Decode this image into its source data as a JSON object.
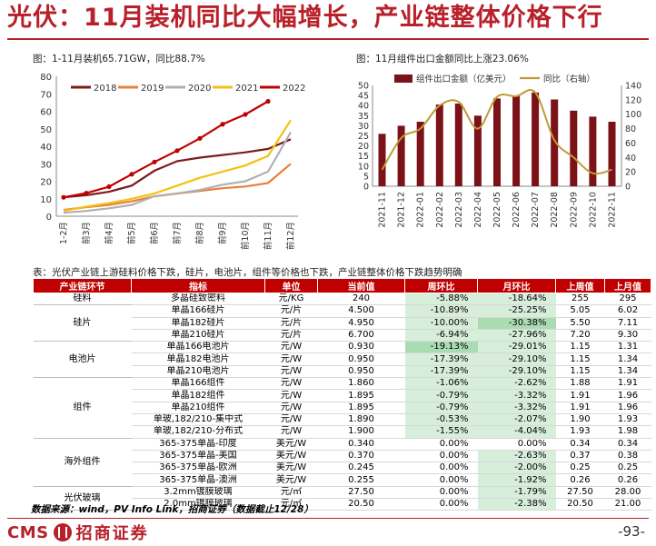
{
  "title": "光伏：11月装机同比大幅增长，产业链整体价格下行",
  "figure1": {
    "caption": "图：1-11月装机65.71GW，同比88.7%"
  },
  "figure2": {
    "caption": "图：11月组件出口金额同比上涨23.06%"
  },
  "table": {
    "caption": "表：光伏产业链上游硅料价格下跌，硅片，电池片，组件等价格也下跌，产业链整体价格下跌趋势明确",
    "headers": [
      "产业链环节",
      "指标",
      "单位",
      "当前值",
      "周环比",
      "月环比",
      "上周值",
      "上月值"
    ],
    "groups": [
      {
        "name": "硅料",
        "rows": [
          {
            "indicator": "多晶硅致密料",
            "unit": "元/KG",
            "current": "240",
            "wow": "-5.88%",
            "mom": "-18.64%",
            "last_week": "255",
            "last_month": "295",
            "wow_hl": 1,
            "mom_hl": 1
          }
        ]
      },
      {
        "name": "硅片",
        "rows": [
          {
            "indicator": "单晶166硅片",
            "unit": "元/片",
            "current": "4.500",
            "wow": "-10.89%",
            "mom": "-25.25%",
            "last_week": "5.05",
            "last_month": "6.02",
            "wow_hl": 1,
            "mom_hl": 1
          },
          {
            "indicator": "单晶182硅片",
            "unit": "元/片",
            "current": "4.950",
            "wow": "-10.00%",
            "mom": "-30.38%",
            "last_week": "5.50",
            "last_month": "7.11",
            "wow_hl": 1,
            "mom_hl": 2
          },
          {
            "indicator": "单晶210硅片",
            "unit": "元/片",
            "current": "6.700",
            "wow": "-6.94%",
            "mom": "-27.96%",
            "last_week": "7.20",
            "last_month": "9.30",
            "wow_hl": 1,
            "mom_hl": 1
          }
        ]
      },
      {
        "name": "电池片",
        "rows": [
          {
            "indicator": "单晶166电池片",
            "unit": "元/W",
            "current": "0.930",
            "wow": "-19.13%",
            "mom": "-29.01%",
            "last_week": "1.15",
            "last_month": "1.31",
            "wow_hl": 2,
            "mom_hl": 1
          },
          {
            "indicator": "单晶182电池片",
            "unit": "元/W",
            "current": "0.950",
            "wow": "-17.39%",
            "mom": "-29.10%",
            "last_week": "1.15",
            "last_month": "1.34",
            "wow_hl": 1,
            "mom_hl": 1
          },
          {
            "indicator": "单晶210电池片",
            "unit": "元/W",
            "current": "0.950",
            "wow": "-17.39%",
            "mom": "-29.10%",
            "last_week": "1.15",
            "last_month": "1.34",
            "wow_hl": 1,
            "mom_hl": 1
          }
        ]
      },
      {
        "name": "组件",
        "rows": [
          {
            "indicator": "单晶166组件",
            "unit": "元/W",
            "current": "1.860",
            "wow": "-1.06%",
            "mom": "-2.62%",
            "last_week": "1.88",
            "last_month": "1.91",
            "wow_hl": 1,
            "mom_hl": 1
          },
          {
            "indicator": "单晶182组件",
            "unit": "元/W",
            "current": "1.895",
            "wow": "-0.79%",
            "mom": "-3.32%",
            "last_week": "1.91",
            "last_month": "1.96",
            "wow_hl": 1,
            "mom_hl": 1
          },
          {
            "indicator": "单晶210组件",
            "unit": "元/W",
            "current": "1.895",
            "wow": "-0.79%",
            "mom": "-3.32%",
            "last_week": "1.91",
            "last_month": "1.96",
            "wow_hl": 1,
            "mom_hl": 1
          },
          {
            "indicator": "单玻,182/210-集中式",
            "unit": "元/W",
            "current": "1.890",
            "wow": "-0.53%",
            "mom": "-2.07%",
            "last_week": "1.90",
            "last_month": "1.93",
            "wow_hl": 1,
            "mom_hl": 1
          },
          {
            "indicator": "单玻,182/210-分布式",
            "unit": "元/W",
            "current": "1.900",
            "wow": "-1.55%",
            "mom": "-4.04%",
            "last_week": "1.93",
            "last_month": "1.98",
            "wow_hl": 1,
            "mom_hl": 1
          }
        ]
      },
      {
        "name": "海外组件",
        "rows": [
          {
            "indicator": "365-375单晶-印度",
            "unit": "美元/W",
            "current": "0.340",
            "wow": "0.00%",
            "mom": "0.00%",
            "last_week": "0.34",
            "last_month": "0.34",
            "wow_hl": 0,
            "mom_hl": 0
          },
          {
            "indicator": "365-375单晶-美国",
            "unit": "美元/W",
            "current": "0.370",
            "wow": "0.00%",
            "mom": "-2.63%",
            "last_week": "0.37",
            "last_month": "0.38",
            "wow_hl": 0,
            "mom_hl": 1
          },
          {
            "indicator": "365-375单晶-欧洲",
            "unit": "美元/W",
            "current": "0.245",
            "wow": "0.00%",
            "mom": "-2.00%",
            "last_week": "0.25",
            "last_month": "0.25",
            "wow_hl": 0,
            "mom_hl": 1
          },
          {
            "indicator": "365-375单晶-澳洲",
            "unit": "美元/W",
            "current": "0.255",
            "wow": "0.00%",
            "mom": "-1.92%",
            "last_week": "0.26",
            "last_month": "0.26",
            "wow_hl": 0,
            "mom_hl": 1
          }
        ]
      },
      {
        "name": "光伏玻璃",
        "rows": [
          {
            "indicator": "3.2mm镀膜玻璃",
            "unit": "元/㎡",
            "current": "27.50",
            "wow": "0.00%",
            "mom": "-1.79%",
            "last_week": "27.50",
            "last_month": "28.00",
            "wow_hl": 0,
            "mom_hl": 1
          },
          {
            "indicator": "2.0mm镀膜玻璃",
            "unit": "元/㎡",
            "current": "20.50",
            "wow": "0.00%",
            "mom": "-2.38%",
            "last_week": "20.50",
            "last_month": "21.00",
            "wow_hl": 0,
            "mom_hl": 1
          }
        ]
      }
    ]
  },
  "source": "数据来源：wind，PV Info Link，招商证券（数据截止12/28）",
  "footer": {
    "logo_text": "CMS",
    "company": "招商证券",
    "page": "-93-"
  },
  "colors": {
    "brand_red": "#b8202a",
    "header_red": "#c00000",
    "highlight_light": "#d7eedb",
    "highlight_dark": "#a9dcb2"
  },
  "chart_data": [
    {
      "type": "line",
      "x": [
        "1-2月",
        "3月",
        "4月",
        "5月",
        "6月",
        "7月",
        "8月",
        "9月",
        "10月",
        "11月",
        "12月"
      ],
      "xlabel_prefix": "前",
      "ylim": [
        0,
        80
      ],
      "yticks": [
        0,
        10,
        20,
        30,
        40,
        50,
        60,
        70,
        80
      ],
      "legend": "top-left",
      "series": [
        {
          "name": "2018",
          "color": "#7b1c1c",
          "marker": "none",
          "values": [
            10.8,
            12.0,
            14.0,
            17.5,
            26.0,
            31.5,
            33.5,
            35.0,
            36.5,
            38.5,
            44.0
          ]
        },
        {
          "name": "2019",
          "color": "#e8803a",
          "marker": "none",
          "values": [
            3.6,
            5.2,
            6.5,
            8.5,
            11.4,
            13.0,
            14.5,
            16.0,
            17.0,
            19.0,
            30.0
          ]
        },
        {
          "name": "2020",
          "color": "#b0b0b0",
          "marker": "none",
          "values": [
            2.0,
            3.0,
            4.5,
            6.5,
            11.5,
            13.0,
            15.0,
            18.0,
            20.0,
            25.5,
            48.0
          ]
        },
        {
          "name": "2021",
          "color": "#f5c012",
          "marker": "none",
          "values": [
            3.0,
            5.5,
            7.5,
            10.0,
            13.0,
            17.5,
            22.0,
            25.5,
            29.0,
            34.5,
            54.9
          ]
        },
        {
          "name": "2022",
          "color": "#c00000",
          "marker": "dot",
          "values": [
            10.8,
            13.2,
            16.9,
            24.0,
            31.0,
            37.5,
            44.5,
            52.6,
            58.2,
            65.7,
            null
          ]
        }
      ]
    },
    {
      "type": "bar",
      "categories": [
        "2021-11",
        "2021-12",
        "2022-01",
        "2022-02",
        "2022-03",
        "2022-04",
        "2022-05",
        "2022-06",
        "2022-07",
        "2022-08",
        "2022-09",
        "2022-10",
        "2022-11"
      ],
      "ylim": [
        0,
        50
      ],
      "yticks": [
        0,
        5,
        10,
        15,
        20,
        25,
        30,
        35,
        40,
        45,
        50
      ],
      "y2lim": [
        0,
        140
      ],
      "y2ticks": [
        0,
        20,
        40,
        60,
        80,
        100,
        120,
        140
      ],
      "legend": "top",
      "series": [
        {
          "name": "组件出口金额（亿美元）",
          "type": "bar",
          "axis": "left",
          "color": "#7a1218",
          "values": [
            26,
            30,
            32,
            40.5,
            41,
            35,
            43.5,
            45,
            46.5,
            43,
            37.5,
            34.5,
            32
          ]
        },
        {
          "name": "同比（右轴）",
          "type": "line",
          "axis": "right",
          "color": "#c09a3a",
          "values": [
            23,
            67,
            80,
            112,
            117,
            80,
            124,
            125,
            130,
            64,
            40,
            18,
            23
          ]
        }
      ]
    }
  ]
}
